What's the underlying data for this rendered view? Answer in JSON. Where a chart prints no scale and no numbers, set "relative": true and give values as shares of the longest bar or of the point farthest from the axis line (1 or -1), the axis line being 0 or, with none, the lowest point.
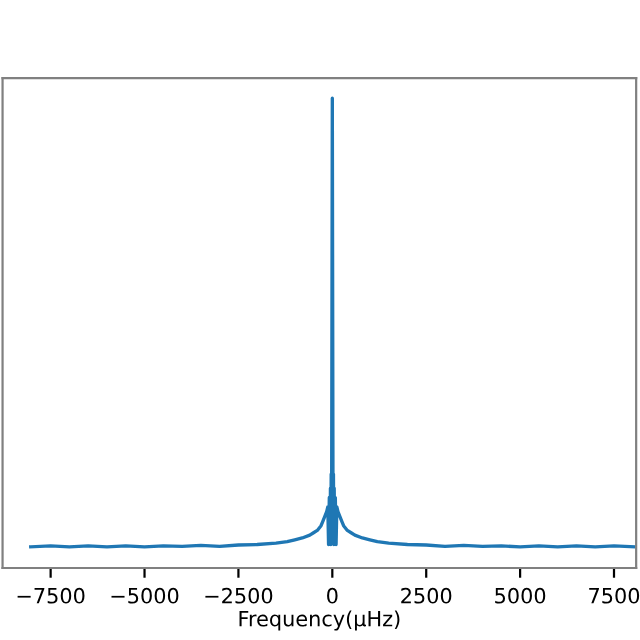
{
  "chart_data": {
    "type": "line",
    "relative": true,
    "xlabel": "Frequency(μHz)",
    "xlim": [
      -8780,
      8090
    ],
    "xticks": [
      {
        "value": -7500,
        "label": "−7500"
      },
      {
        "value": -5000,
        "label": "−5000"
      },
      {
        "value": -2500,
        "label": "−2500"
      },
      0,
      2500,
      5000,
      7500
    ],
    "tick_labels": "x",
    "grid": false,
    "series": [
      {
        "color": "#1f77b4",
        "x": [
          -8030,
          -7500,
          -7000,
          -6500,
          -6000,
          -5500,
          -5000,
          -4500,
          -4000,
          -3500,
          -3000,
          -2500,
          -2000,
          -1500,
          -1200,
          -1000,
          -800,
          -600,
          -500,
          -400,
          -300,
          -250,
          -200,
          -150,
          -120,
          -100,
          -80,
          -60,
          -50,
          -40,
          -30,
          -20,
          -10,
          0,
          10,
          20,
          30,
          40,
          50,
          60,
          80,
          100,
          120,
          150,
          200,
          250,
          300,
          400,
          500,
          600,
          800,
          1000,
          1200,
          1500,
          2000,
          2500,
          3000,
          3500,
          4000,
          4500,
          5000,
          5500,
          6000,
          6500,
          7000,
          7500,
          8030
        ],
        "values": [
          0.045,
          0.047,
          0.045,
          0.047,
          0.045,
          0.047,
          0.045,
          0.047,
          0.046,
          0.048,
          0.046,
          0.049,
          0.05,
          0.053,
          0.056,
          0.06,
          0.064,
          0.07,
          0.075,
          0.08,
          0.09,
          0.1,
          0.11,
          0.12,
          0.13,
          0.05,
          0.15,
          0.06,
          0.17,
          0.05,
          0.2,
          0.06,
          0.53,
          1.0,
          0.53,
          0.06,
          0.2,
          0.05,
          0.17,
          0.06,
          0.15,
          0.05,
          0.13,
          0.12,
          0.11,
          0.1,
          0.09,
          0.08,
          0.075,
          0.07,
          0.064,
          0.06,
          0.056,
          0.053,
          0.05,
          0.049,
          0.046,
          0.048,
          0.046,
          0.047,
          0.045,
          0.047,
          0.045,
          0.047,
          0.045,
          0.047,
          0.045
        ]
      }
    ]
  }
}
